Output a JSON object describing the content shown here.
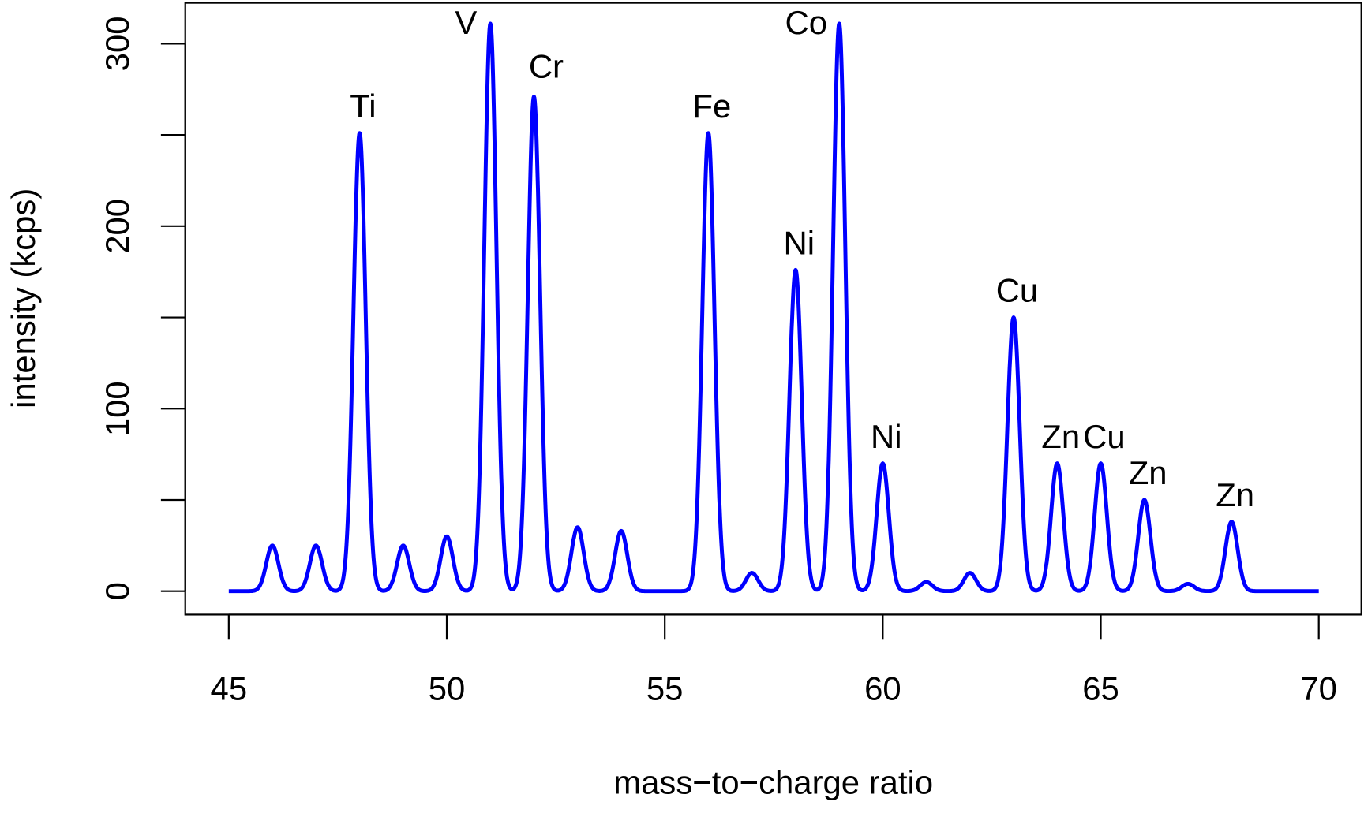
{
  "chart_data": {
    "type": "line",
    "title": "",
    "xlabel": "mass−to−charge ratio",
    "ylabel": "intensity (kcps)",
    "xlim": [
      45,
      70
    ],
    "ylim": [
      0,
      300
    ],
    "xticks": [
      "45",
      "50",
      "55",
      "60",
      "65",
      "70"
    ],
    "yticks": [
      "0",
      "100",
      "200",
      "300"
    ],
    "grid": false,
    "line_color": "#0000ff",
    "peaks": [
      {
        "mz": 46,
        "intensity": 25
      },
      {
        "mz": 47,
        "intensity": 25
      },
      {
        "mz": 48,
        "intensity": 251,
        "label": "Ti"
      },
      {
        "mz": 49,
        "intensity": 25
      },
      {
        "mz": 50,
        "intensity": 30
      },
      {
        "mz": 51,
        "intensity": 311,
        "label": "V"
      },
      {
        "mz": 52,
        "intensity": 271,
        "label": "Cr"
      },
      {
        "mz": 53,
        "intensity": 35
      },
      {
        "mz": 54,
        "intensity": 33
      },
      {
        "mz": 56,
        "intensity": 251,
        "label": "Fe"
      },
      {
        "mz": 57,
        "intensity": 10
      },
      {
        "mz": 58,
        "intensity": 176,
        "label": "Ni"
      },
      {
        "mz": 59,
        "intensity": 311,
        "label": "Co"
      },
      {
        "mz": 60,
        "intensity": 70,
        "label": "Ni"
      },
      {
        "mz": 61,
        "intensity": 5
      },
      {
        "mz": 62,
        "intensity": 10
      },
      {
        "mz": 63,
        "intensity": 150,
        "label": "Cu"
      },
      {
        "mz": 64,
        "intensity": 70,
        "label": "Zn"
      },
      {
        "mz": 65,
        "intensity": 70,
        "label": "Cu"
      },
      {
        "mz": 66,
        "intensity": 50,
        "label": "Zn"
      },
      {
        "mz": 67,
        "intensity": 4
      },
      {
        "mz": 68,
        "intensity": 38,
        "label": "Zn"
      }
    ]
  }
}
